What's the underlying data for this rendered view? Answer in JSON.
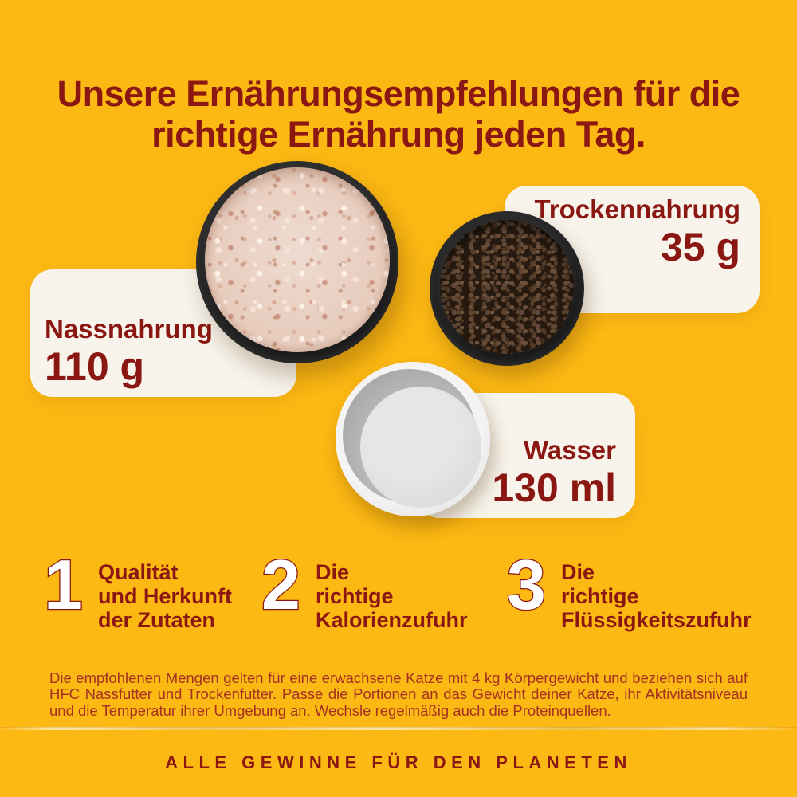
{
  "header": {
    "line1": "Unsere Ernährungsempfehlungen für die",
    "line2": "richtige Ernährung jeden Tag."
  },
  "cards": [
    {
      "label": "Nassnahrung",
      "amount": "110 g"
    },
    {
      "label": "Trockennahrung",
      "amount": "35 g"
    },
    {
      "label": "Wasser",
      "amount": "130 ml"
    }
  ],
  "tips": [
    {
      "number": "1",
      "lines": [
        "Qualität",
        "und Herkunft",
        "der Zutaten"
      ]
    },
    {
      "number": "2",
      "lines": [
        "Die",
        "richtige",
        "Kalorienzufuhr"
      ]
    },
    {
      "number": "3",
      "lines": [
        "Die",
        "richtige",
        "Flüssigkeitszufuhr"
      ]
    }
  ],
  "disclaimer": {
    "text": "Die empfohlenen Mengen gelten für eine erwachsene Katze mit 4 kg Körpergewicht und beziehen sich auf HFC Nassfutter und Trockenfutter. Passe die Portionen an das Gewicht deiner Katze, ihr Aktivitätsniveau und die Temperatur ihrer Umgebung an. Wechsle regelmäßig auch die Proteinquellen."
  },
  "footer": {
    "text": "ALLE GEWINNE FÜR DEN PLANETEN"
  },
  "colors": {
    "background": "#FCB813",
    "heading": "#8B1713",
    "card": "#F8F4EB",
    "disclaimer_text": "#A33222"
  }
}
